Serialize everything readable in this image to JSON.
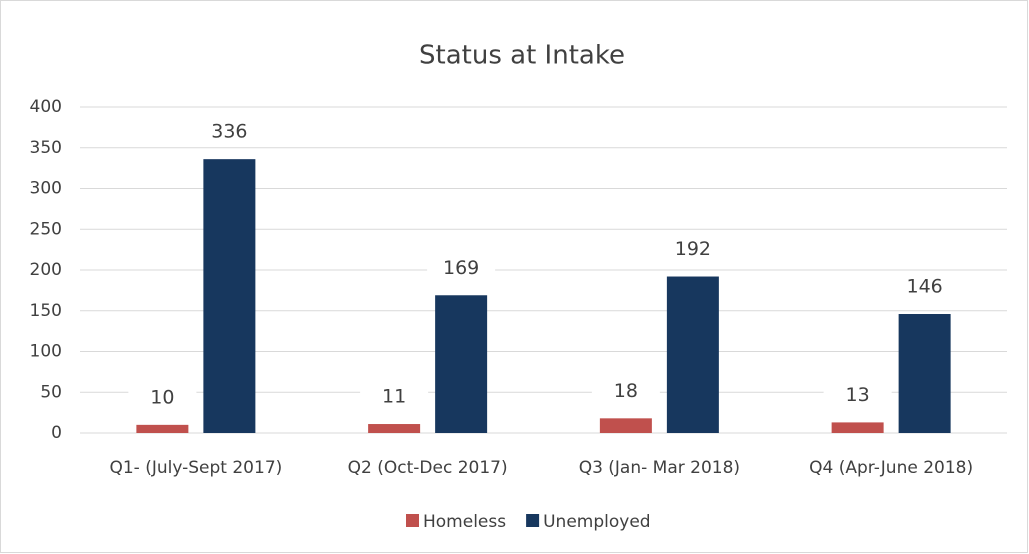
{
  "chart_data": {
    "type": "bar",
    "title": "Status at Intake",
    "categories": [
      "Q1- (July-Sept 2017)",
      "Q2 (Oct-Dec 2017)",
      "Q3 (Jan- Mar 2018)",
      "Q4 (Apr-June 2018)"
    ],
    "series": [
      {
        "name": "Homeless",
        "color": "#c0504d",
        "values": [
          10,
          11,
          18,
          13
        ]
      },
      {
        "name": "Unemployed",
        "color": "#17375e",
        "values": [
          336,
          169,
          192,
          146
        ]
      }
    ],
    "ylim": [
      0,
      400
    ],
    "yticks": [
      0,
      50,
      100,
      150,
      200,
      250,
      300,
      350,
      400
    ],
    "grid": true,
    "legend": "bottom"
  }
}
